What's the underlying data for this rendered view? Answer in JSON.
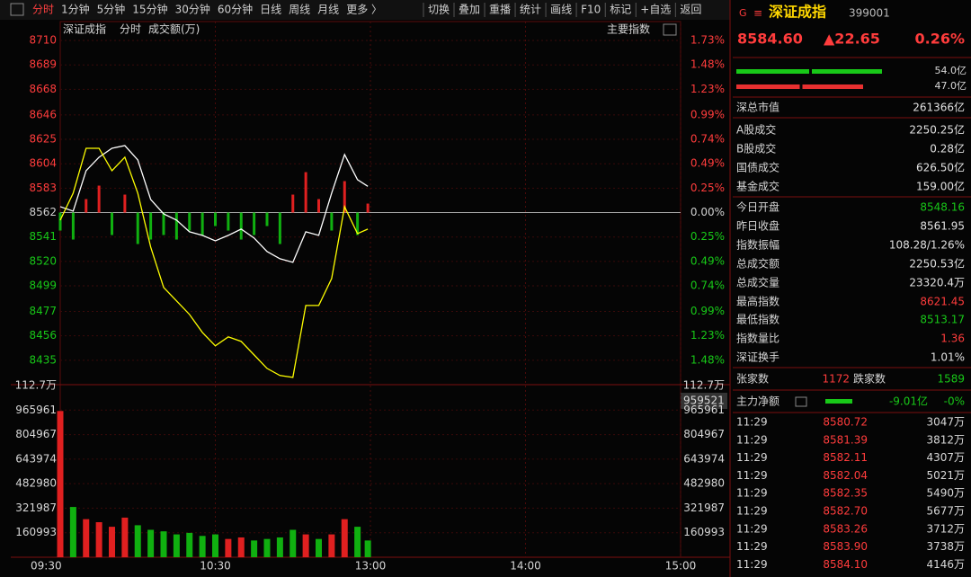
{
  "toolbar": {
    "tabs": [
      "分时",
      "1分钟",
      "5分钟",
      "15分钟",
      "30分钟",
      "60分钟",
      "日线",
      "周线",
      "月线",
      "更多 〉"
    ],
    "tools": [
      "切换",
      "叠加",
      "重播",
      "统计",
      "画线",
      "F10",
      "标记",
      "+自选",
      "返回"
    ]
  },
  "chart": {
    "type": "line",
    "title": "深证成指",
    "period": "分时",
    "indicator": "成交额(万)",
    "button": "主要指数",
    "x": [
      0,
      5,
      10,
      15,
      20,
      25,
      30,
      35,
      40,
      45,
      50,
      55,
      60,
      65,
      70,
      75,
      80,
      85,
      90,
      95,
      100,
      105,
      110,
      115,
      119
    ],
    "xlim": [
      0,
      240
    ],
    "xticks": [
      {
        "value": 0,
        "label": "09:30"
      },
      {
        "value": 60,
        "label": "10:30"
      },
      {
        "value": 120,
        "label": "13:00"
      },
      {
        "value": 180,
        "label": "14:00"
      },
      {
        "value": 240,
        "label": "15:00"
      }
    ],
    "series": [
      {
        "color": "#ffffff",
        "values": [
          8567.1,
          8563.2,
          8598.0,
          8609.6,
          8617.3,
          8619.6,
          8607.3,
          8573.3,
          8560.9,
          8555.5,
          8545.5,
          8542.4,
          8537.7,
          8542.4,
          8547.8,
          8540.1,
          8528.5,
          8522.3,
          8519.2,
          8545.5,
          8542.4,
          8578.7,
          8611.9,
          8590.3,
          8584.6
        ]
      },
      {
        "color": "#ffff00",
        "values": [
          8555.5,
          8578.7,
          8617.3,
          8617.3,
          8598.0,
          8609.6,
          8578.7,
          8532.3,
          8497.6,
          8486.0,
          8474.4,
          8458.9,
          8447.4,
          8455.1,
          8451.2,
          8439.6,
          8428.0,
          8421.9,
          8420.3,
          8482.1,
          8482.1,
          8505.3,
          8567.1,
          8543.9,
          8547.8
        ]
      }
    ],
    "strength": [
      -20,
      -30,
      15,
      30,
      -25,
      20,
      -35,
      -30,
      -25,
      -30,
      -20,
      -25,
      -15,
      -20,
      -30,
      -25,
      -15,
      -35,
      20,
      45,
      15,
      -20,
      35,
      -25,
      10
    ],
    "ylim": [
      8414,
      8717
    ],
    "yticks": [
      8710,
      8689,
      8668,
      8646,
      8625,
      8604,
      8583,
      8562,
      8541,
      8520,
      8499,
      8477,
      8456,
      8435
    ],
    "pct_labels": [
      "1.73%",
      "1.48%",
      "1.23%",
      "0.99%",
      "0.74%",
      "0.49%",
      "0.25%",
      "0.00%",
      "0.25%",
      "0.49%",
      "0.74%",
      "0.99%",
      "1.23%",
      "1.48%"
    ],
    "grid": true,
    "volume": {
      "values": [
        960000,
        330000,
        250000,
        230000,
        200000,
        260000,
        210000,
        180000,
        170000,
        150000,
        160000,
        140000,
        150000,
        120000,
        130000,
        110000,
        120000,
        130000,
        180000,
        150000,
        120000,
        150000,
        250000,
        200000,
        110000
      ],
      "ylim": [
        0,
        1127000
      ],
      "yticks": [
        {
          "value": 1127000,
          "label": "112.7万"
        },
        965961,
        804967,
        643974,
        482980,
        321987,
        160993
      ],
      "cursor": "959521"
    }
  },
  "quote": {
    "flag": "G",
    "menu": "≡",
    "name": "深证成指",
    "code": "399001",
    "price": "8584.60",
    "change": "▲22.65",
    "pct": "0.26%",
    "flows": [
      {
        "value": 54.0,
        "label": "54.0亿",
        "color": "#18c818"
      },
      {
        "value": 47.0,
        "label": "47.0亿",
        "color": "#e83030"
      }
    ],
    "stats": [
      {
        "label": "深总市值",
        "value": "261366亿",
        "color": "#e0e0e0"
      },
      {
        "label": "A股成交",
        "value": "2250.25亿",
        "color": "#e0e0e0"
      },
      {
        "label": "B股成交",
        "value": "0.28亿",
        "color": "#e0e0e0"
      },
      {
        "label": "国债成交",
        "value": "626.50亿",
        "color": "#e0e0e0"
      },
      {
        "label": "基金成交",
        "value": "159.00亿",
        "color": "#e0e0e0"
      },
      {
        "label": "今日开盘",
        "value": "8548.16",
        "color": "#18c818"
      },
      {
        "label": "昨日收盘",
        "value": "8561.95",
        "color": "#e0e0e0"
      },
      {
        "label": "指数振幅",
        "value": "108.28/1.26%",
        "color": "#e0e0e0"
      },
      {
        "label": "总成交额",
        "value": "2250.53亿",
        "color": "#e0e0e0"
      },
      {
        "label": "总成交量",
        "value": "23320.4万",
        "color": "#e0e0e0"
      },
      {
        "label": "最高指数",
        "value": "8621.45",
        "color": "#ff3c3c"
      },
      {
        "label": "最低指数",
        "value": "8513.17",
        "color": "#18c818"
      },
      {
        "label": "指数量比",
        "value": "1.36",
        "color": "#ff3c3c"
      },
      {
        "label": "深证换手",
        "value": "1.01%",
        "color": "#e0e0e0"
      }
    ],
    "breadth": {
      "up_label": "张家数",
      "up": "1172",
      "down_label": "跌家数",
      "down": "1589"
    },
    "main_flow": {
      "label": "主力净额",
      "value": "-9.01亿",
      "pct": "-0%"
    },
    "trades": [
      [
        "11:29",
        "8580.72",
        "3047万"
      ],
      [
        "11:29",
        "8581.39",
        "3812万"
      ],
      [
        "11:29",
        "8582.11",
        "4307万"
      ],
      [
        "11:29",
        "8582.04",
        "5021万"
      ],
      [
        "11:29",
        "8582.35",
        "5490万"
      ],
      [
        "11:29",
        "8582.70",
        "5677万"
      ],
      [
        "11:29",
        "8583.26",
        "3712万"
      ],
      [
        "11:29",
        "8583.90",
        "3738万"
      ],
      [
        "11:29",
        "8584.10",
        "4146万"
      ]
    ]
  }
}
